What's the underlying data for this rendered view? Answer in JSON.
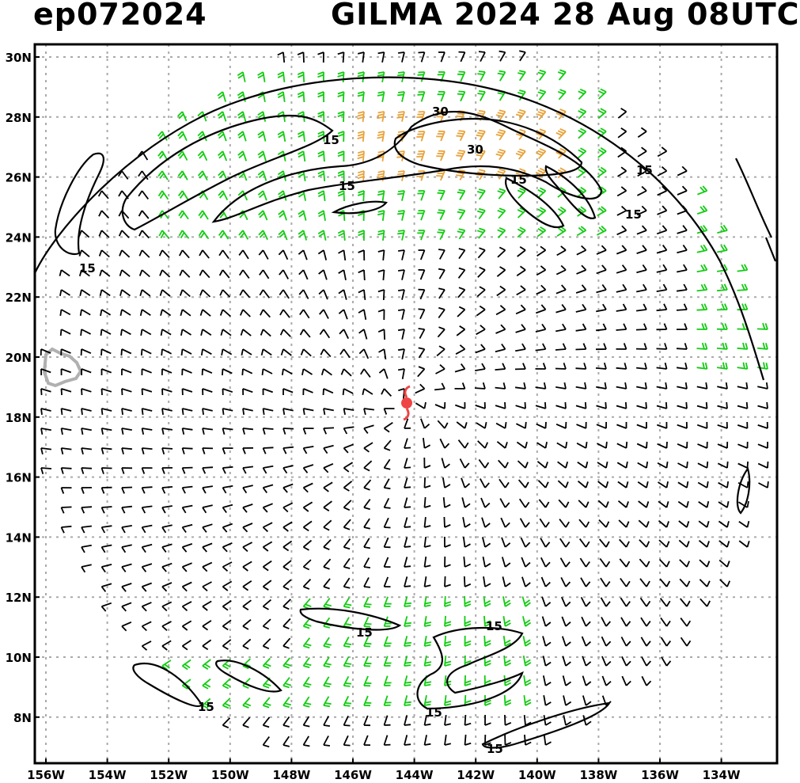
{
  "title_left": "ep072024",
  "title_right": "GILMA 2024 28 Aug 08UTC",
  "lat_labels": [
    "30N",
    "28N",
    "26N",
    "24N",
    "22N",
    "20N",
    "18N",
    "16N",
    "14N",
    "12N",
    "10N",
    "8N"
  ],
  "lon_labels": [
    "156W",
    "154W",
    "152W",
    "150W",
    "148W",
    "146W",
    "144W",
    "142W",
    "140W",
    "138W",
    "136W",
    "134W"
  ],
  "contour_labels": [
    "30",
    "30",
    "15",
    "15",
    "15",
    "15",
    "15",
    "15",
    "15",
    "15",
    "15",
    "15",
    "15"
  ],
  "colors": {
    "barb_light": "#000000",
    "barb_moderate": "#11cc11",
    "barb_strong": "#e8a33a",
    "contour": "#000000",
    "grid": "#aaaaaa",
    "storm": "#ee4444",
    "island": "#b0b0b0"
  },
  "storm_center": {
    "name": "GILMA",
    "lat": 18.5,
    "lon": -144.2,
    "symbol": "hurricane-icon"
  }
}
